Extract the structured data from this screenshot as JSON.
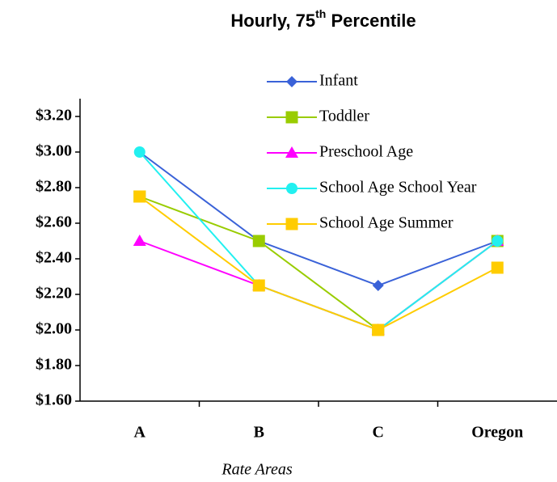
{
  "chart_data": {
    "type": "line",
    "title": [
      "Hourly, 75",
      "th",
      " Percentile"
    ],
    "x_label": "Rate Areas",
    "categories": [
      "A",
      "B",
      "C",
      "Oregon"
    ],
    "series": [
      {
        "name": "Infant",
        "color": "#3a62d8",
        "marker": "diamond",
        "values": [
          3.0,
          2.5,
          2.25,
          2.5
        ]
      },
      {
        "name": "Toddler",
        "color": "#99cc00",
        "marker": "square",
        "values": [
          2.75,
          2.5,
          2.0,
          2.5
        ]
      },
      {
        "name": "Preschool Age",
        "color": "#ff00ff",
        "marker": "triangle",
        "values": [
          2.5,
          2.25,
          2.0,
          2.5
        ]
      },
      {
        "name": "School Age School Year",
        "color": "#22f0f0",
        "marker": "circle",
        "values": [
          3.0,
          2.25,
          2.0,
          2.5
        ]
      },
      {
        "name": "School Age Summer",
        "color": "#ffcc00",
        "marker": "square",
        "values": [
          2.75,
          2.25,
          2.0,
          2.35
        ]
      }
    ],
    "ylim": [
      1.6,
      3.2
    ],
    "yticks": [
      {
        "value": 1.6,
        "label": "$1.60"
      },
      {
        "value": 1.8,
        "label": "$1.80"
      },
      {
        "value": 2.0,
        "label": "$2.00"
      },
      {
        "value": 2.2,
        "label": "$2.20"
      },
      {
        "value": 2.4,
        "label": "$2.40"
      },
      {
        "value": 2.6,
        "label": "$2.60"
      },
      {
        "value": 2.8,
        "label": "$2.80"
      },
      {
        "value": 3.0,
        "label": "$3.00"
      },
      {
        "value": 3.2,
        "label": "$3.20"
      }
    ],
    "grid": false
  }
}
